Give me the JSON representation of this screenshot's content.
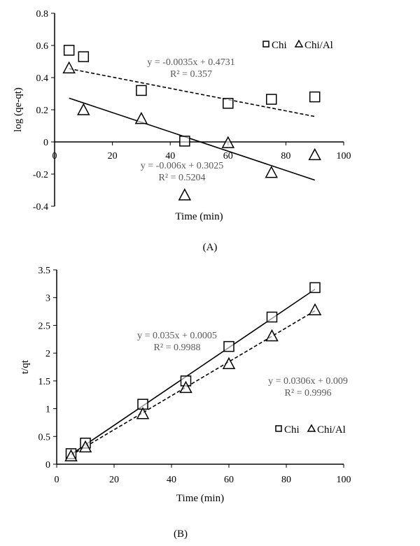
{
  "chart_data": [
    {
      "type": "scatter",
      "panel_label": "(A)",
      "xlabel": "Time (min)",
      "ylabel": "log (qe-qt)",
      "xlim": [
        0,
        100
      ],
      "ylim": [
        -0.4,
        0.8
      ],
      "xticks": [
        "0",
        "20",
        "40",
        "60",
        "80",
        "100"
      ],
      "yticks": [
        "-0.4",
        "-0.2",
        "0",
        "0.2",
        "0.4",
        "0.6",
        "0.8"
      ],
      "xtick_values": [
        0,
        20,
        40,
        60,
        80,
        100
      ],
      "ytick_values": [
        -0.4,
        -0.2,
        0,
        0.2,
        0.4,
        0.6,
        0.8
      ],
      "grid": false,
      "legend_position": "top-right",
      "series": [
        {
          "name": "Chi",
          "marker": "square",
          "x": [
            5,
            10,
            30,
            45,
            60,
            75,
            90
          ],
          "y": [
            0.57,
            0.53,
            0.32,
            0.005,
            0.24,
            0.265,
            0.28
          ]
        },
        {
          "name": "Chi/Al",
          "marker": "triangle",
          "x": [
            5,
            10,
            30,
            45,
            60,
            75,
            90
          ],
          "y": [
            0.46,
            0.2,
            0.145,
            -0.33,
            -0.005,
            -0.19,
            -0.08
          ]
        }
      ],
      "trendlines": [
        {
          "slope": -0.0035,
          "intercept": 0.4731,
          "x_range": [
            5,
            90
          ],
          "style": "dashed",
          "equation": "y = -0.0035x + 0.4731",
          "r2": "R² = 0.357"
        },
        {
          "slope": -0.006,
          "intercept": 0.3025,
          "x_range": [
            5,
            90
          ],
          "style": "solid",
          "equation": "y = -0.006x + 0.3025",
          "r2": "R² = 0.5204"
        }
      ]
    },
    {
      "type": "scatter",
      "panel_label": "(B)",
      "xlabel": "Time (min)",
      "ylabel": "t/qt",
      "xlim": [
        0,
        100
      ],
      "ylim": [
        0,
        3.5
      ],
      "xticks": [
        "0",
        "20",
        "40",
        "60",
        "80",
        "100"
      ],
      "yticks": [
        "0",
        "0.5",
        "1",
        "1.5",
        "2",
        "2.5",
        "3",
        "3.5"
      ],
      "xtick_values": [
        0,
        20,
        40,
        60,
        80,
        100
      ],
      "ytick_values": [
        0,
        0.5,
        1,
        1.5,
        2,
        2.5,
        3,
        3.5
      ],
      "grid": false,
      "legend_position": "bottom-right",
      "series": [
        {
          "name": "Chi",
          "marker": "square",
          "x": [
            5,
            10,
            30,
            45,
            60,
            75,
            90
          ],
          "y": [
            0.19,
            0.38,
            1.08,
            1.5,
            2.12,
            2.65,
            3.18
          ]
        },
        {
          "name": "Chi/Al",
          "marker": "triangle",
          "x": [
            5,
            10,
            30,
            45,
            60,
            75,
            90
          ],
          "y": [
            0.15,
            0.31,
            0.91,
            1.38,
            1.81,
            2.31,
            2.78
          ]
        }
      ],
      "trendlines": [
        {
          "slope": 0.035,
          "intercept": 0.0005,
          "x_range": [
            5,
            90
          ],
          "style": "solid",
          "equation": "y = 0.035x + 0.0005",
          "r2": "R² = 0.9988"
        },
        {
          "slope": 0.0306,
          "intercept": 0.009,
          "x_range": [
            5,
            90
          ],
          "style": "dashed",
          "equation": "y = 0.0306x + 0.009",
          "r2": "R² = 0.9996"
        }
      ]
    }
  ]
}
